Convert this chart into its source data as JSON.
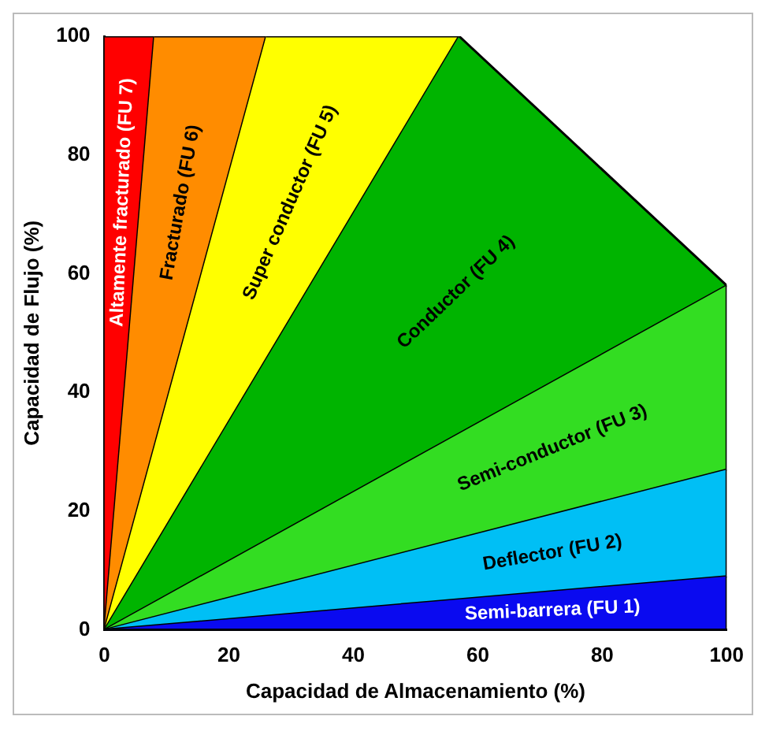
{
  "chart_data": {
    "type": "area",
    "xlabel": "Capacidad de Almacenamiento (%)",
    "ylabel": "Capacidad de Flujo (%)",
    "xlim": [
      0,
      100
    ],
    "ylim": [
      0,
      100
    ],
    "xticks": [
      0,
      20,
      40,
      60,
      80,
      100
    ],
    "yticks": [
      0,
      20,
      40,
      60,
      80,
      100
    ],
    "grid": false,
    "legend": false,
    "series": [
      {
        "name": "Semi-barrera (FU 1)",
        "color": "#0a0af0",
        "x": [
          0,
          100,
          100
        ],
        "values": [
          0,
          0,
          9
        ]
      },
      {
        "name": "Deflector (FU 2)",
        "color": "#00bff5",
        "x": [
          0,
          100,
          100
        ],
        "values": [
          0,
          9,
          27
        ]
      },
      {
        "name": "Semi-conductor (FU 3)",
        "color": "#33dd22",
        "x": [
          0,
          100,
          100
        ],
        "values": [
          0,
          27,
          58
        ]
      },
      {
        "name": "Conductor (FU 4)",
        "color": "#00b400",
        "x": [
          0,
          100,
          57
        ],
        "values": [
          0,
          58,
          100
        ]
      },
      {
        "name": "Super conductor (FU 5)",
        "color": "#ffff00",
        "x": [
          0,
          57,
          26
        ],
        "values": [
          0,
          100,
          100
        ]
      },
      {
        "name": "Fracturado (FU 6)",
        "color": "#ff8c00",
        "x": [
          0,
          26,
          8
        ],
        "values": [
          0,
          100,
          100
        ]
      },
      {
        "name": "Altamente fracturado (FU 7)",
        "color": "#ff0000",
        "x": [
          0,
          8,
          0
        ],
        "values": [
          0,
          100,
          100
        ]
      }
    ]
  }
}
